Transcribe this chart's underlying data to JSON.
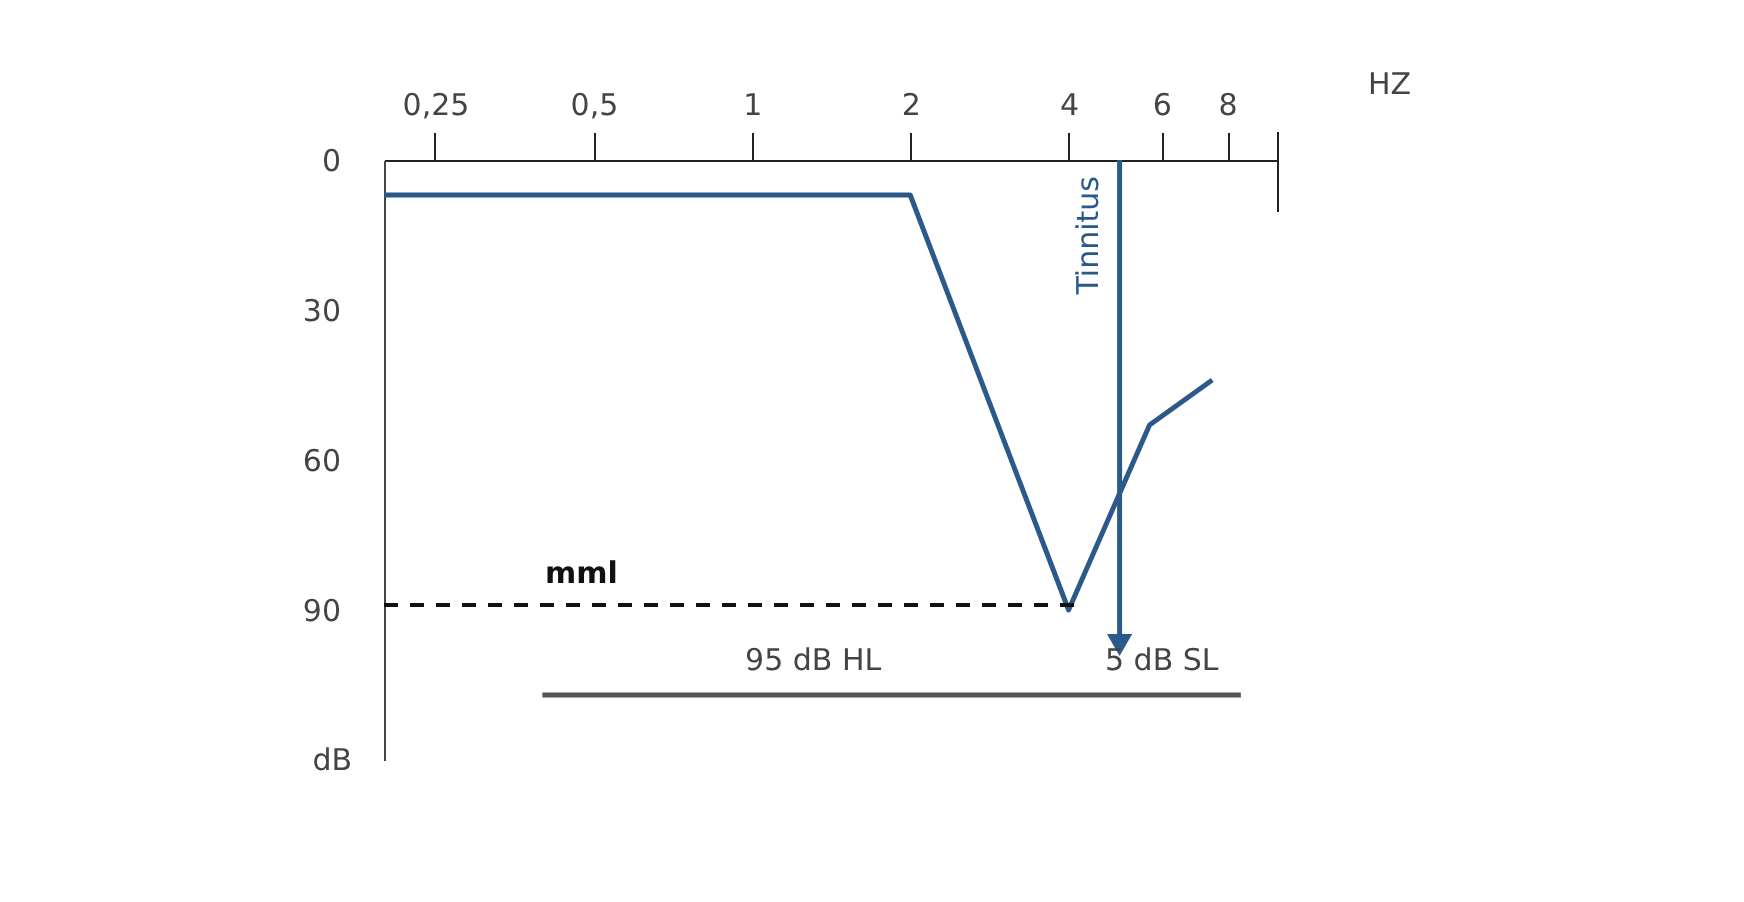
{
  "chart_data": {
    "type": "line",
    "xlabel": "HZ",
    "ylabel": "dB",
    "log": "x",
    "xlim": [
      0.2,
      10
    ],
    "ylim": [
      120,
      0
    ],
    "xticks": [
      {
        "value": 0.25,
        "label": "0,25"
      },
      {
        "value": 0.5,
        "label": "0,5"
      },
      1,
      2,
      4,
      6,
      8
    ],
    "yticks": [
      0,
      30,
      60,
      90
    ],
    "grid": false,
    "series": [
      {
        "color": "#2b5a8a",
        "x": [
          0.2,
          2,
          4,
          5.7,
          7.5
        ],
        "values": [
          7,
          7,
          90,
          53,
          44
        ]
      },
      {
        "color": "#555555",
        "x": [
          0.4,
          8.5
        ],
        "values": [
          107,
          107
        ]
      },
      {
        "name": "Tinnitus",
        "color": "#2b5a8a",
        "marker": "triangle",
        "x": [
          5,
          5
        ],
        "values": [
          0,
          97
        ]
      }
    ],
    "ref_lines": [
      {
        "axis": "y",
        "value": 89,
        "label": "mml",
        "color": "#111111",
        "line_style": "dashed"
      }
    ],
    "annotations": [
      "95 dB HL",
      "5 dB SL"
    ]
  }
}
